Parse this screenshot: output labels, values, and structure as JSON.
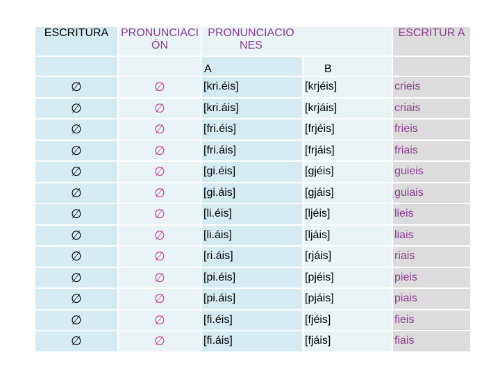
{
  "headers": {
    "escritura": "ESCRITURA",
    "pronunciacion": "PRONUNCIACI ÓN",
    "pronunciaciones": "PRONUNCIACIO NES",
    "escritura_a": "ESCRITUR A",
    "sub_a": "A",
    "sub_b": "B"
  },
  "empty_symbol": "∅",
  "rows": [
    {
      "pron_a": "[kri.éis]",
      "pron_b": "[krjéis]",
      "escritura": "crieis"
    },
    {
      "pron_a": "[kri.áis]",
      "pron_b": "[krjáis]",
      "escritura": "criais"
    },
    {
      "pron_a": "[fri.éis]",
      "pron_b": "[frjéis]",
      "escritura": "frieis"
    },
    {
      "pron_a": "[fri.áis]",
      "pron_b": "[frjáis]",
      "escritura": "friais"
    },
    {
      "pron_a": "[gi.éis]",
      "pron_b": "[gjéis]",
      "escritura": "guieis"
    },
    {
      "pron_a": "[gi.áis]",
      "pron_b": "[gjáis]",
      "escritura": "guiais"
    },
    {
      "pron_a": "[li.éis]",
      "pron_b": "[ljéis]",
      "escritura": "lieis"
    },
    {
      "pron_a": "[li.áis]",
      "pron_b": "[ljáis]",
      "escritura": "liais"
    },
    {
      "pron_a": "[ri.áis]",
      "pron_b": "[rjáis]",
      "escritura": "riais"
    },
    {
      "pron_a": "[pi.éis]",
      "pron_b": "[pjéis]",
      "escritura": "pieis"
    },
    {
      "pron_a": "[pi.áis]",
      "pron_b": "[pjáis]",
      "escritura": "piais"
    },
    {
      "pron_a": "[fi.éis]",
      "pron_b": "[fjéis]",
      "escritura": "fieis"
    },
    {
      "pron_a": "[fi.áis]",
      "pron_b": "[fjáis]",
      "escritura": "fiais"
    }
  ],
  "colors": {
    "cell_dark": "#d6eaf1",
    "cell_light": "#eaf4f7",
    "cell_gray": "#dcdcdc",
    "pink_text": "#c0398b",
    "purple_text": "#8a3b8f"
  }
}
